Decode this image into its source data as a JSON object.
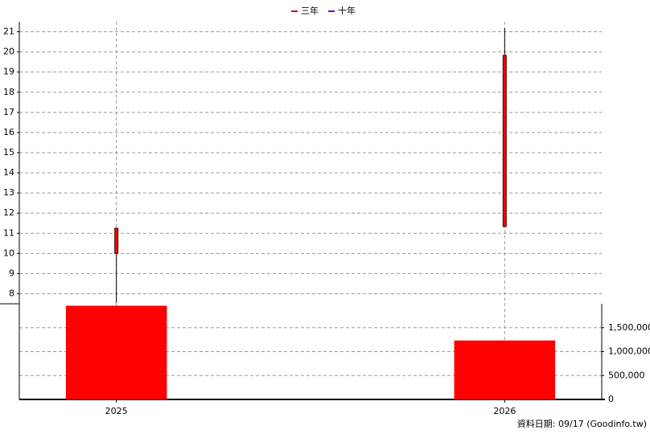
{
  "chart_data": {
    "type": "candlestick",
    "legend": [
      {
        "name": "三年",
        "color": "#cc0033"
      },
      {
        "name": "十年",
        "color": "#6600cc"
      }
    ],
    "x": [
      2025,
      2026
    ],
    "xlim": [
      2024.75,
      2026.25
    ],
    "xticks": [
      2025,
      2026
    ],
    "open": [
      10.0,
      11.33
    ],
    "close": [
      11.25,
      19.83
    ],
    "high": [
      11.25,
      21.18
    ],
    "low": [
      7.55,
      11.33
    ],
    "color": "#ff0000",
    "ylim": [
      7.5,
      21.5
    ],
    "yticks": [
      8,
      9,
      10,
      11,
      12,
      13,
      14,
      15,
      16,
      17,
      18,
      19,
      20,
      21
    ],
    "volume": {
      "values": [
        1960000,
        1233000
      ],
      "color": "#ff0000",
      "y2lim": [
        0,
        2000000
      ],
      "y2ticks": [
        0,
        {
          "value": 500000,
          "label": "500,000"
        },
        {
          "value": 1000000,
          "label": "1,000,000"
        },
        {
          "value": 1500000,
          "label": "1,500,000"
        }
      ]
    },
    "grid": true,
    "footer": "資料日期: 09/17  (Goodinfo.tw)"
  }
}
